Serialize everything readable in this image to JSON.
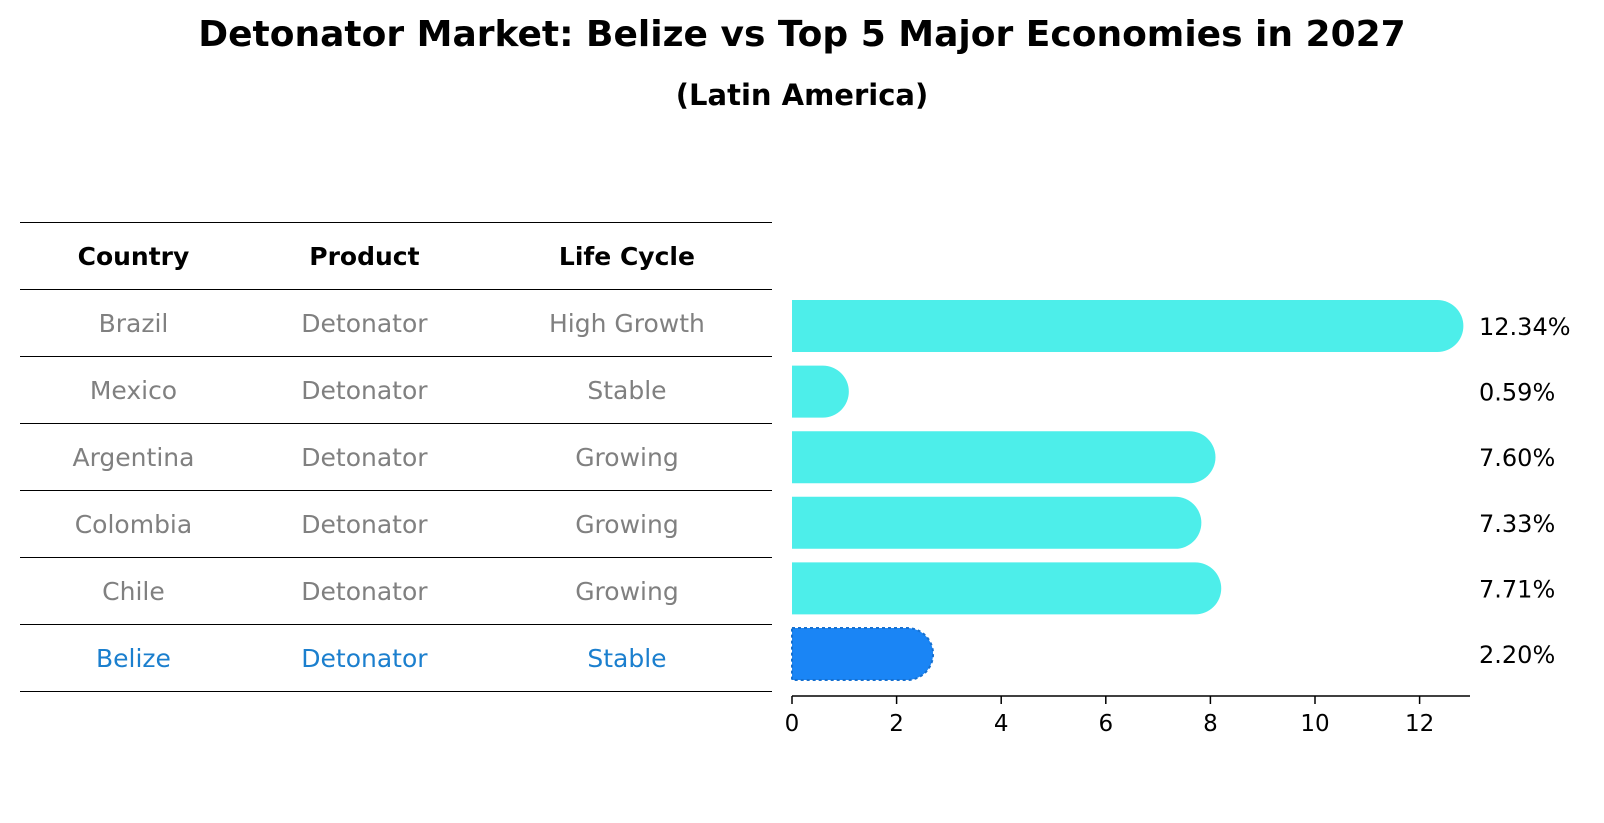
{
  "title": "Detonator Market: Belize vs Top 5 Major Economies in 2027",
  "subtitle": "(Latin America)",
  "table": {
    "headers": [
      "Country",
      "Product",
      "Life Cycle"
    ],
    "rows": [
      [
        "Brazil",
        "Detonator",
        "High Growth"
      ],
      [
        "Mexico",
        "Detonator",
        "Stable"
      ],
      [
        "Argentina",
        "Detonator",
        "Growing"
      ],
      [
        "Colombia",
        "Detonator",
        "Growing"
      ],
      [
        "Chile",
        "Detonator",
        "Growing"
      ],
      [
        "Belize",
        "Detonator",
        "Stable"
      ]
    ]
  },
  "colors": {
    "bar": "#4deeea",
    "highlight_bar": "#1a85f5",
    "highlight_text": "#1b7fce",
    "muted_text": "#808080"
  },
  "chart_data": {
    "type": "bar",
    "orientation": "horizontal",
    "categories": [
      "Brazil",
      "Mexico",
      "Argentina",
      "Colombia",
      "Chile",
      "Belize"
    ],
    "values": [
      12.34,
      0.59,
      7.6,
      7.33,
      7.71,
      2.2
    ],
    "labels": [
      "12.34%",
      "0.59%",
      "7.60%",
      "7.33%",
      "7.71%",
      "2.20%"
    ],
    "highlight": "Belize",
    "xlim": [
      0,
      13
    ],
    "xticks": [
      0,
      2,
      4,
      6,
      8,
      10,
      12
    ],
    "grid": false
  }
}
